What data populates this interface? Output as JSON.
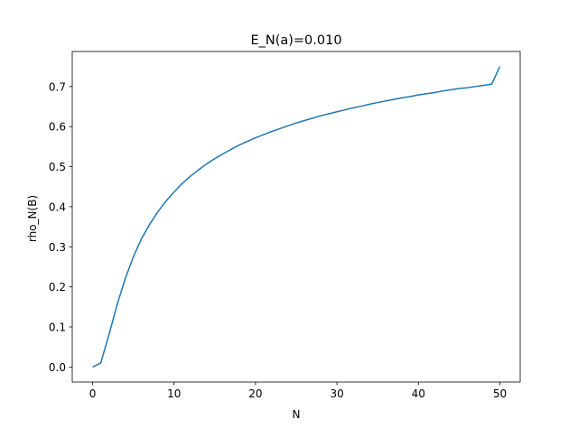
{
  "chart_data": {
    "type": "line",
    "title": "E_N(a)=0.010",
    "xlabel": "N",
    "ylabel": "rho_N(B)",
    "xlim": [
      -2.5,
      52.5
    ],
    "ylim": [
      -0.0375,
      0.7875
    ],
    "xticks": [
      0,
      10,
      20,
      30,
      40,
      50
    ],
    "yticks": [
      0.0,
      0.1,
      0.2,
      0.3,
      0.4,
      0.5,
      0.6,
      0.7
    ],
    "xtick_labels": [
      "0",
      "10",
      "20",
      "30",
      "40",
      "50"
    ],
    "ytick_labels": [
      "0.0",
      "0.1",
      "0.2",
      "0.3",
      "0.4",
      "0.5",
      "0.6",
      "0.7"
    ],
    "grid": false,
    "series": [
      {
        "color": "#1f77b4",
        "x": [
          0,
          1,
          2,
          3,
          4,
          5,
          6,
          7,
          8,
          9,
          10,
          11,
          12,
          13,
          14,
          15,
          16,
          17,
          18,
          19,
          20,
          21,
          22,
          23,
          24,
          25,
          26,
          27,
          28,
          29,
          30,
          31,
          32,
          33,
          34,
          35,
          36,
          37,
          38,
          39,
          40,
          41,
          42,
          43,
          44,
          45,
          46,
          47,
          48,
          49,
          50
        ],
        "y": [
          0.0,
          0.01,
          0.08,
          0.155,
          0.22,
          0.275,
          0.32,
          0.356,
          0.387,
          0.414,
          0.437,
          0.458,
          0.476,
          0.492,
          0.507,
          0.52,
          0.532,
          0.543,
          0.554,
          0.563,
          0.572,
          0.58,
          0.588,
          0.595,
          0.602,
          0.609,
          0.615,
          0.621,
          0.627,
          0.632,
          0.637,
          0.642,
          0.647,
          0.651,
          0.656,
          0.66,
          0.664,
          0.668,
          0.672,
          0.675,
          0.679,
          0.682,
          0.685,
          0.689,
          0.692,
          0.695,
          0.697,
          0.7,
          0.703,
          0.706,
          0.75
        ]
      }
    ]
  }
}
